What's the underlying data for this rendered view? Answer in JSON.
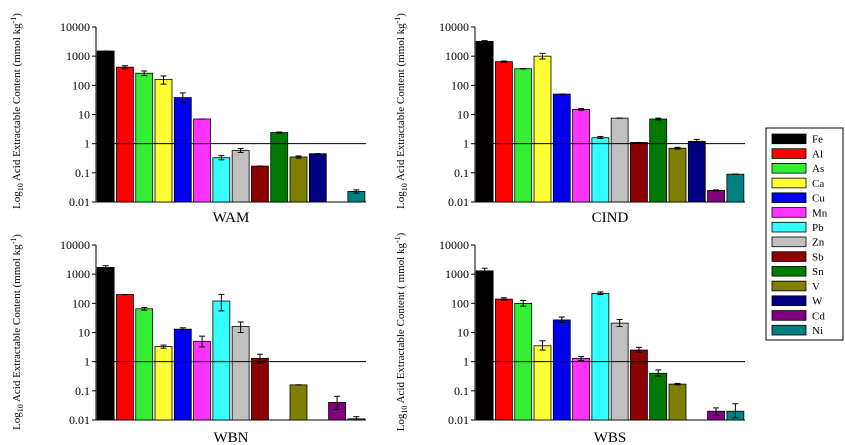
{
  "colors": {
    "Fe": "#000000",
    "Al": "#ff0000",
    "As": "#33ee33",
    "Ca": "#ffff33",
    "Cu": "#0000ee",
    "Mn": "#ff33ff",
    "Pb": "#33ffff",
    "Zn": "#c0c0c0",
    "Sb": "#8b0000",
    "Sn": "#007a00",
    "V": "#808000",
    "W": "#000080",
    "Cd": "#800080",
    "Ni": "#008080"
  },
  "legend": {
    "placement": "right",
    "entries": [
      "Fe",
      "Al",
      "As",
      "Ca",
      "Cu",
      "Mn",
      "Pb",
      "Zn",
      "Sb",
      "Sn",
      "V",
      "W",
      "Cd",
      "Ni"
    ]
  },
  "chart_data": [
    {
      "type": "bar",
      "title": "WAM",
      "ylabel_prefix": "Log",
      "ylabel_sub": "10",
      "ylabel_main": " Acid Extractable Content (mmol kg",
      "ylabel_sup": "-1",
      "ylabel_suffix": ")",
      "yscale": "log",
      "ylim": [
        0.01,
        10000
      ],
      "yticks": [
        "0.01",
        "0.1",
        "1",
        "10",
        "100",
        "1000",
        "10000"
      ],
      "reference_line": 1,
      "categories": [
        "Fe",
        "Al",
        "As",
        "Ca",
        "Cu",
        "Mn",
        "Pb",
        "Zn",
        "Sb",
        "Sn",
        "V",
        "W",
        "Cd",
        "Ni"
      ],
      "values": [
        1500,
        420,
        260,
        160,
        38,
        7,
        0.33,
        0.58,
        0.17,
        2.4,
        0.35,
        0.45,
        null,
        0.023
      ],
      "errors": [
        [
          1500,
          1500
        ],
        [
          370,
          470
        ],
        [
          215,
          310
        ],
        [
          110,
          210
        ],
        [
          25,
          55
        ],
        [
          7,
          7
        ],
        [
          0.28,
          0.39
        ],
        [
          0.5,
          0.68
        ],
        [
          0.17,
          0.17
        ],
        [
          2.3,
          2.5
        ],
        [
          0.32,
          0.38
        ],
        [
          0.45,
          0.45
        ],
        null,
        [
          0.02,
          0.026
        ]
      ]
    },
    {
      "type": "bar",
      "title": "CIND",
      "ylabel_prefix": "Log",
      "ylabel_sub": "10",
      "ylabel_main": " Acid Extractable Content (mmol kg",
      "ylabel_sup": "-1",
      "ylabel_suffix": ")",
      "yscale": "log",
      "ylim": [
        0.01,
        10000
      ],
      "yticks": [
        "0.01",
        "0.1",
        "1",
        "10",
        "100",
        "1000",
        "10000"
      ],
      "reference_line": 1,
      "categories": [
        "Fe",
        "Al",
        "As",
        "Ca",
        "Cu",
        "Mn",
        "Pb",
        "Zn",
        "Sb",
        "Sn",
        "V",
        "W",
        "Cd",
        "Ni"
      ],
      "values": [
        3200,
        650,
        370,
        1000,
        50,
        15,
        1.6,
        7.5,
        1.1,
        7,
        0.7,
        1.2,
        0.025,
        0.09
      ],
      "errors": [
        [
          3000,
          3400
        ],
        [
          620,
          680
        ],
        [
          370,
          370
        ],
        [
          800,
          1250
        ],
        [
          50,
          50
        ],
        [
          14,
          16
        ],
        [
          1.5,
          1.75
        ],
        [
          7.5,
          7.5
        ],
        [
          1.1,
          1.1
        ],
        [
          6.5,
          7.5
        ],
        [
          0.65,
          0.75
        ],
        [
          1.05,
          1.4
        ],
        [
          0.024,
          0.026
        ],
        [
          0.09,
          0.09
        ]
      ]
    },
    {
      "type": "bar",
      "title": "WBN",
      "ylabel_prefix": "Log",
      "ylabel_sub": "10",
      "ylabel_main": " Acid Extractable Content (mmol kg",
      "ylabel_sup": "-1",
      "ylabel_suffix": ")",
      "yscale": "log",
      "ylim": [
        0.01,
        10000
      ],
      "yticks": [
        "0.01",
        "0.1",
        "1",
        "10",
        "100",
        "1000",
        "10000"
      ],
      "reference_line": 1,
      "categories": [
        "Fe",
        "Al",
        "As",
        "Ca",
        "Cu",
        "Mn",
        "Pb",
        "Zn",
        "Sb",
        "Sn",
        "V",
        "W",
        "Cd",
        "Ni"
      ],
      "values": [
        1700,
        200,
        65,
        3.3,
        13,
        5,
        120,
        16,
        1.3,
        null,
        0.16,
        null,
        0.04,
        0.011
      ],
      "errors": [
        [
          1500,
          1950
        ],
        [
          200,
          200
        ],
        [
          58,
          72
        ],
        [
          2.9,
          3.7
        ],
        [
          11,
          14.5
        ],
        [
          3.2,
          7.5
        ],
        [
          55,
          200
        ],
        [
          10,
          23
        ],
        [
          0.9,
          1.8
        ],
        null,
        [
          0.16,
          0.16
        ],
        null,
        [
          0.023,
          0.065
        ],
        [
          0.01,
          0.013
        ]
      ]
    },
    {
      "type": "bar",
      "title": "WBS",
      "ylabel_prefix": "Log",
      "ylabel_sub": "10",
      "ylabel_main": " Acid Extractable Content ( mmol kg",
      "ylabel_sup": "-1",
      "ylabel_suffix": ")",
      "yscale": "log",
      "ylim": [
        0.01,
        10000
      ],
      "yticks": [
        "0.01",
        "0.1",
        "1",
        "10",
        "100",
        "1000",
        "10000"
      ],
      "reference_line": 1,
      "categories": [
        "Fe",
        "Al",
        "As",
        "Ca",
        "Cu",
        "Mn",
        "Pb",
        "Zn",
        "Sb",
        "Sn",
        "V",
        "W",
        "Cd",
        "Ni"
      ],
      "values": [
        1300,
        140,
        100,
        3.5,
        27,
        1.3,
        220,
        21,
        2.5,
        0.4,
        0.17,
        null,
        0.02,
        0.02
      ],
      "errors": [
        [
          1050,
          1600
        ],
        [
          128,
          155
        ],
        [
          80,
          125
        ],
        [
          2.5,
          5.2
        ],
        [
          22,
          34
        ],
        [
          1.1,
          1.5
        ],
        [
          200,
          245
        ],
        [
          16,
          28
        ],
        [
          2.1,
          3.1
        ],
        [
          0.32,
          0.52
        ],
        [
          0.16,
          0.18
        ],
        null,
        [
          0.015,
          0.026
        ],
        [
          0.012,
          0.036
        ]
      ]
    }
  ]
}
